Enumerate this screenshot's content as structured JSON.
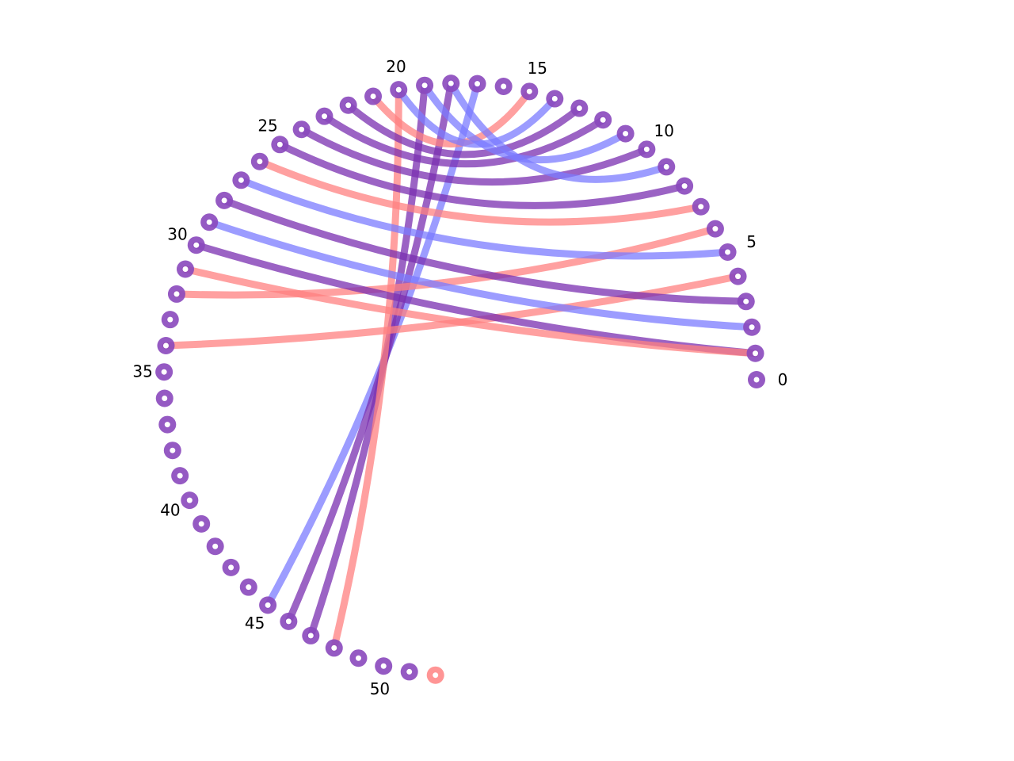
{
  "diagram": {
    "type": "arc-diagram",
    "node_count": 53,
    "labels": [
      "0",
      "5",
      "10",
      "15",
      "20",
      "25",
      "30",
      "35",
      "40",
      "45",
      "50"
    ],
    "label_every": 5,
    "colors": {
      "node_fill": "#8a48bd",
      "node_red": "#ff8a8a",
      "node_center": "#ffffff",
      "red": "#ff8080",
      "blue": "#7b7bff",
      "purple": "#7a2fb0",
      "label": "#000000"
    },
    "special_nodes": [
      {
        "index": 52,
        "color": "red"
      }
    ],
    "links": [
      {
        "source": 17,
        "target": 45,
        "color": "blue"
      },
      {
        "source": 18,
        "target": 46,
        "color": "purple"
      },
      {
        "source": 19,
        "target": 47,
        "color": "purple"
      },
      {
        "source": 20,
        "target": 48,
        "color": "red"
      },
      {
        "source": 15,
        "target": 21,
        "color": "red"
      },
      {
        "source": 14,
        "target": 20,
        "color": "blue"
      },
      {
        "source": 13,
        "target": 22,
        "color": "purple"
      },
      {
        "source": 12,
        "target": 23,
        "color": "purple"
      },
      {
        "source": 11,
        "target": 19,
        "color": "blue"
      },
      {
        "source": 10,
        "target": 24,
        "color": "purple"
      },
      {
        "source": 9,
        "target": 18,
        "color": "blue"
      },
      {
        "source": 8,
        "target": 25,
        "color": "purple"
      },
      {
        "source": 7,
        "target": 26,
        "color": "red"
      },
      {
        "source": 6,
        "target": 32,
        "color": "red"
      },
      {
        "source": 5,
        "target": 27,
        "color": "blue"
      },
      {
        "source": 4,
        "target": 34,
        "color": "red"
      },
      {
        "source": 3,
        "target": 28,
        "color": "purple"
      },
      {
        "source": 2,
        "target": 29,
        "color": "blue"
      },
      {
        "source": 1,
        "target": 30,
        "color": "purple"
      },
      {
        "source": 1,
        "target": 31,
        "color": "red"
      }
    ]
  }
}
